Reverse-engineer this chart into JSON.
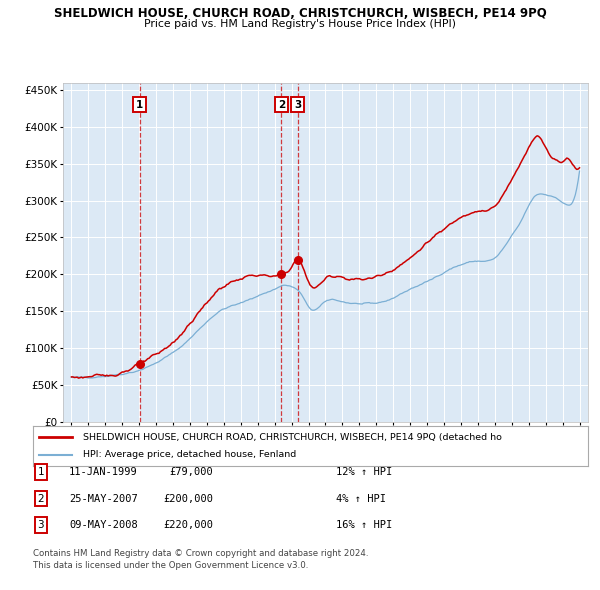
{
  "title": "SHELDWICH HOUSE, CHURCH ROAD, CHRISTCHURCH, WISBECH, PE14 9PQ",
  "subtitle": "Price paid vs. HM Land Registry's House Price Index (HPI)",
  "legend_line1": "SHELDWICH HOUSE, CHURCH ROAD, CHRISTCHURCH, WISBECH, PE14 9PQ (detached ho",
  "legend_line2": "HPI: Average price, detached house, Fenland",
  "footnote1": "Contains HM Land Registry data © Crown copyright and database right 2024.",
  "footnote2": "This data is licensed under the Open Government Licence v3.0.",
  "transactions": [
    {
      "label": "1",
      "date": "11-JAN-1999",
      "price": "£79,000",
      "pct": "12% ↑ HPI",
      "x_year": 1999.03,
      "y_val": 79000
    },
    {
      "label": "2",
      "date": "25-MAY-2007",
      "price": "£200,000",
      "pct": "4% ↑ HPI",
      "x_year": 2007.4,
      "y_val": 200000
    },
    {
      "label": "3",
      "date": "09-MAY-2008",
      "price": "£220,000",
      "pct": "16% ↑ HPI",
      "x_year": 2008.36,
      "y_val": 220000
    }
  ],
  "red_color": "#cc0000",
  "blue_color": "#7bafd4",
  "bg_color": "#dce9f5",
  "grid_color": "#ffffff",
  "ylim": [
    0,
    460000
  ],
  "yticks": [
    0,
    50000,
    100000,
    150000,
    200000,
    250000,
    300000,
    350000,
    400000,
    450000
  ],
  "xlim_start": 1994.5,
  "xlim_end": 2025.5,
  "xtick_years": [
    1995,
    1996,
    1997,
    1998,
    1999,
    2000,
    2001,
    2002,
    2003,
    2004,
    2005,
    2006,
    2007,
    2008,
    2009,
    2010,
    2011,
    2012,
    2013,
    2014,
    2015,
    2016,
    2017,
    2018,
    2019,
    2020,
    2021,
    2022,
    2023,
    2024,
    2025
  ]
}
